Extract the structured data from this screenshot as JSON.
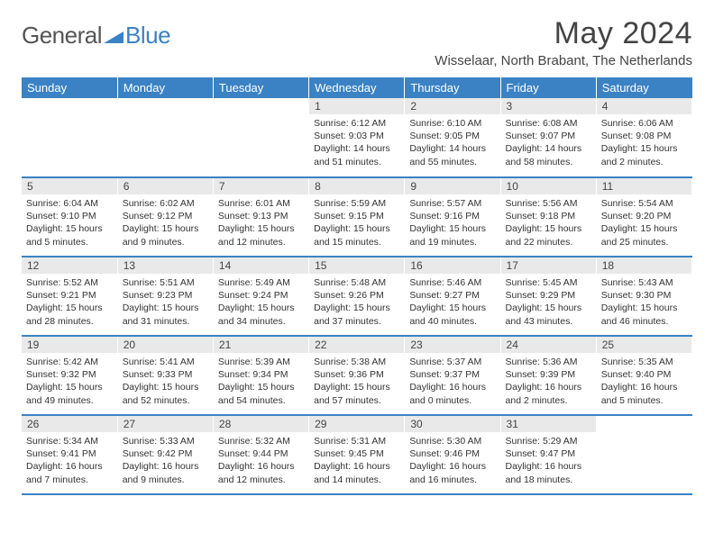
{
  "brand": {
    "part1": "General",
    "part2": "Blue"
  },
  "title": "May 2024",
  "location": "Wisselaar, North Brabant, The Netherlands",
  "colors": {
    "accent": "#3b82c4",
    "dayBar": "#e9e9e9",
    "text": "#333"
  },
  "dayNames": [
    "Sunday",
    "Monday",
    "Tuesday",
    "Wednesday",
    "Thursday",
    "Friday",
    "Saturday"
  ],
  "grid": [
    [
      {
        "n": "",
        "sr": "",
        "ss": "",
        "dl": ""
      },
      {
        "n": "",
        "sr": "",
        "ss": "",
        "dl": ""
      },
      {
        "n": "",
        "sr": "",
        "ss": "",
        "dl": ""
      },
      {
        "n": "1",
        "sr": "Sunrise: 6:12 AM",
        "ss": "Sunset: 9:03 PM",
        "dl": "Daylight: 14 hours and 51 minutes."
      },
      {
        "n": "2",
        "sr": "Sunrise: 6:10 AM",
        "ss": "Sunset: 9:05 PM",
        "dl": "Daylight: 14 hours and 55 minutes."
      },
      {
        "n": "3",
        "sr": "Sunrise: 6:08 AM",
        "ss": "Sunset: 9:07 PM",
        "dl": "Daylight: 14 hours and 58 minutes."
      },
      {
        "n": "4",
        "sr": "Sunrise: 6:06 AM",
        "ss": "Sunset: 9:08 PM",
        "dl": "Daylight: 15 hours and 2 minutes."
      }
    ],
    [
      {
        "n": "5",
        "sr": "Sunrise: 6:04 AM",
        "ss": "Sunset: 9:10 PM",
        "dl": "Daylight: 15 hours and 5 minutes."
      },
      {
        "n": "6",
        "sr": "Sunrise: 6:02 AM",
        "ss": "Sunset: 9:12 PM",
        "dl": "Daylight: 15 hours and 9 minutes."
      },
      {
        "n": "7",
        "sr": "Sunrise: 6:01 AM",
        "ss": "Sunset: 9:13 PM",
        "dl": "Daylight: 15 hours and 12 minutes."
      },
      {
        "n": "8",
        "sr": "Sunrise: 5:59 AM",
        "ss": "Sunset: 9:15 PM",
        "dl": "Daylight: 15 hours and 15 minutes."
      },
      {
        "n": "9",
        "sr": "Sunrise: 5:57 AM",
        "ss": "Sunset: 9:16 PM",
        "dl": "Daylight: 15 hours and 19 minutes."
      },
      {
        "n": "10",
        "sr": "Sunrise: 5:56 AM",
        "ss": "Sunset: 9:18 PM",
        "dl": "Daylight: 15 hours and 22 minutes."
      },
      {
        "n": "11",
        "sr": "Sunrise: 5:54 AM",
        "ss": "Sunset: 9:20 PM",
        "dl": "Daylight: 15 hours and 25 minutes."
      }
    ],
    [
      {
        "n": "12",
        "sr": "Sunrise: 5:52 AM",
        "ss": "Sunset: 9:21 PM",
        "dl": "Daylight: 15 hours and 28 minutes."
      },
      {
        "n": "13",
        "sr": "Sunrise: 5:51 AM",
        "ss": "Sunset: 9:23 PM",
        "dl": "Daylight: 15 hours and 31 minutes."
      },
      {
        "n": "14",
        "sr": "Sunrise: 5:49 AM",
        "ss": "Sunset: 9:24 PM",
        "dl": "Daylight: 15 hours and 34 minutes."
      },
      {
        "n": "15",
        "sr": "Sunrise: 5:48 AM",
        "ss": "Sunset: 9:26 PM",
        "dl": "Daylight: 15 hours and 37 minutes."
      },
      {
        "n": "16",
        "sr": "Sunrise: 5:46 AM",
        "ss": "Sunset: 9:27 PM",
        "dl": "Daylight: 15 hours and 40 minutes."
      },
      {
        "n": "17",
        "sr": "Sunrise: 5:45 AM",
        "ss": "Sunset: 9:29 PM",
        "dl": "Daylight: 15 hours and 43 minutes."
      },
      {
        "n": "18",
        "sr": "Sunrise: 5:43 AM",
        "ss": "Sunset: 9:30 PM",
        "dl": "Daylight: 15 hours and 46 minutes."
      }
    ],
    [
      {
        "n": "19",
        "sr": "Sunrise: 5:42 AM",
        "ss": "Sunset: 9:32 PM",
        "dl": "Daylight: 15 hours and 49 minutes."
      },
      {
        "n": "20",
        "sr": "Sunrise: 5:41 AM",
        "ss": "Sunset: 9:33 PM",
        "dl": "Daylight: 15 hours and 52 minutes."
      },
      {
        "n": "21",
        "sr": "Sunrise: 5:39 AM",
        "ss": "Sunset: 9:34 PM",
        "dl": "Daylight: 15 hours and 54 minutes."
      },
      {
        "n": "22",
        "sr": "Sunrise: 5:38 AM",
        "ss": "Sunset: 9:36 PM",
        "dl": "Daylight: 15 hours and 57 minutes."
      },
      {
        "n": "23",
        "sr": "Sunrise: 5:37 AM",
        "ss": "Sunset: 9:37 PM",
        "dl": "Daylight: 16 hours and 0 minutes."
      },
      {
        "n": "24",
        "sr": "Sunrise: 5:36 AM",
        "ss": "Sunset: 9:39 PM",
        "dl": "Daylight: 16 hours and 2 minutes."
      },
      {
        "n": "25",
        "sr": "Sunrise: 5:35 AM",
        "ss": "Sunset: 9:40 PM",
        "dl": "Daylight: 16 hours and 5 minutes."
      }
    ],
    [
      {
        "n": "26",
        "sr": "Sunrise: 5:34 AM",
        "ss": "Sunset: 9:41 PM",
        "dl": "Daylight: 16 hours and 7 minutes."
      },
      {
        "n": "27",
        "sr": "Sunrise: 5:33 AM",
        "ss": "Sunset: 9:42 PM",
        "dl": "Daylight: 16 hours and 9 minutes."
      },
      {
        "n": "28",
        "sr": "Sunrise: 5:32 AM",
        "ss": "Sunset: 9:44 PM",
        "dl": "Daylight: 16 hours and 12 minutes."
      },
      {
        "n": "29",
        "sr": "Sunrise: 5:31 AM",
        "ss": "Sunset: 9:45 PM",
        "dl": "Daylight: 16 hours and 14 minutes."
      },
      {
        "n": "30",
        "sr": "Sunrise: 5:30 AM",
        "ss": "Sunset: 9:46 PM",
        "dl": "Daylight: 16 hours and 16 minutes."
      },
      {
        "n": "31",
        "sr": "Sunrise: 5:29 AM",
        "ss": "Sunset: 9:47 PM",
        "dl": "Daylight: 16 hours and 18 minutes."
      },
      {
        "n": "",
        "sr": "",
        "ss": "",
        "dl": ""
      }
    ]
  ]
}
